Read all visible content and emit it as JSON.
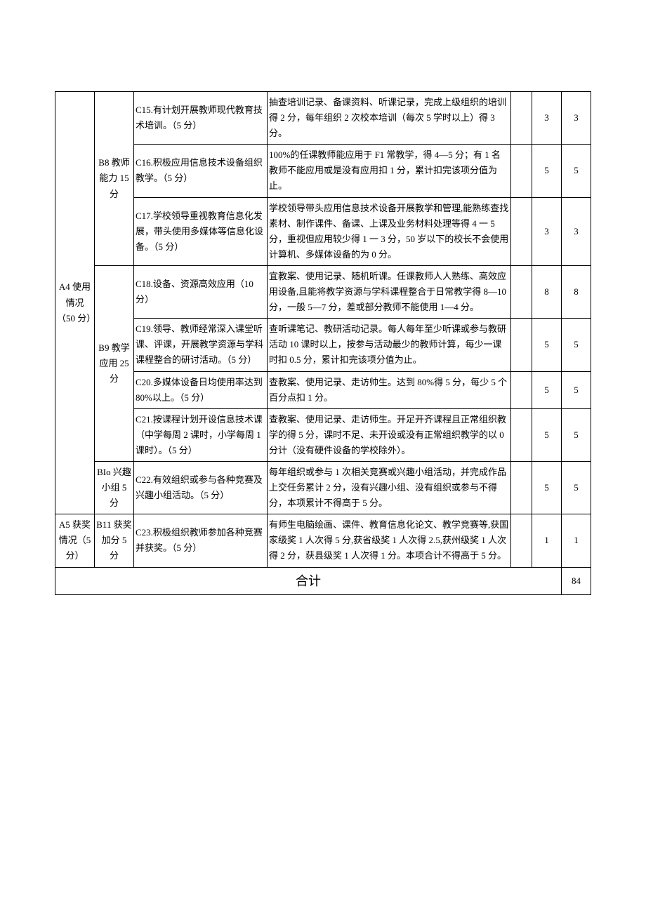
{
  "rows": {
    "a4": {
      "label": "A4 使用情况（50 分）"
    },
    "a5": {
      "label": "A5 获奖情况（5 分）"
    },
    "b8": {
      "label": "B8 教师能力 15 分"
    },
    "b9": {
      "label": "B9 教学应用 25 分"
    },
    "b10": {
      "label": "BIo 兴趣小组 5 分"
    },
    "b11": {
      "label": "B11 获奖加分 5 分"
    },
    "c15": {
      "c": "C15.有计划开展教师现代教育技术培训。（5 分）",
      "d": "抽查培训记录、备课资料、听课记录，完成上级组织的培训得 2 分，每年组织 2 次校本培训（每次 5 学时以上）得 3 分。",
      "e": "",
      "f": "3",
      "g": "3"
    },
    "c16": {
      "c": "C16.积极应用信息技术设备组织教学。（5 分）",
      "d": "100%的任课教师能应用于 F1 常教学，得 4—5 分；有 1 名教师不能应用或是没有应用扣 1 分，累计扣完该项分值为止。",
      "e": "",
      "f": "5",
      "g": "5"
    },
    "c17": {
      "c": "C17.学校领导重视教育信息化发展，带头使用多媒体等信息化设备。（5 分）",
      "d": "学校领导带头应用信息技术设备开展教学和管理,能熟练查找素材、制作课件、备课、上课及业务材料处理等得 4 一 5 分，重视但应用较少得 1 一 3 分，50 岁以下的校长不会使用计算机、多媒体设备的为 0 分。",
      "e": "",
      "f": "3",
      "g": "3"
    },
    "c18": {
      "c": "C18.设备、资源高效应用（10 分）",
      "d": "宜教案、使用记录、随机听课。任课教师人人熟练、高效应用设备,且能将教学资源与学科课程整合于日常教学得 8—10 分，一般 5—7 分，差或部分教师不能使用 1—4 分。",
      "e": "",
      "f": "8",
      "g": "8"
    },
    "c19": {
      "c": "C19.领导、教师经常深入课堂听课、评课，开展教学资源与学科课程整合的研讨活动。（5 分）",
      "d": "查听课笔记、教研活动记录。每人每年至少听课或参与教研活动 10 课时以上，按参与活动最少的教师计算，每少一课时扣 0.5 分，累计扣完该项分值为止。",
      "e": "",
      "f": "5",
      "g": "5"
    },
    "c20": {
      "c": "C20.多媒体设备日均使用率达到 80%以上。（5 分）",
      "d": "查教案、使用记录、走访帅生。达到 80%得 5 分，每少 5 个百分点扣 1 分。",
      "e": "",
      "f": "5",
      "g": "5"
    },
    "c21": {
      "c": "C21.按课程计划开设信息技术课（中学每周 2 课时，小学每周 1 课时）。（5 分）",
      "d": "查教案、使用记录、走访师生。开足开齐课程且正常组织教学的得 5 分，课时不足、未开设或没有正常组织教学的以 0 分计（没有硬件设备的学校除外）。",
      "e": "",
      "f": "5",
      "g": "5"
    },
    "c22": {
      "c": "C22.有效组织或参与各种竞赛及兴趣小组活动。（5 分）",
      "d": "每年组织或参与 1 次相关竞赛或兴趣小组活动，并完成作品上交任务累计 2 分，没有兴趣小组、没有组织或参与不得分，本项累计不得高于 5 分。",
      "e": "",
      "f": "5",
      "g": "5"
    },
    "c23": {
      "c": "C23.积极组织教师参加各种竞赛并获奖。（5 分）",
      "d": "有师生电脑绘画、课件、教育信息化论文、教学竞赛等,获国家级奖 1 人次得 5 分,获省级奖 1 人次得 2.5,获州级奖 1 人次得 2 分，获县级奖 1 人次得 1 分。本项合计不得高于 5 分。",
      "e": "",
      "f": "1",
      "g": "1"
    }
  },
  "total": {
    "label": "合计",
    "value": "84"
  }
}
